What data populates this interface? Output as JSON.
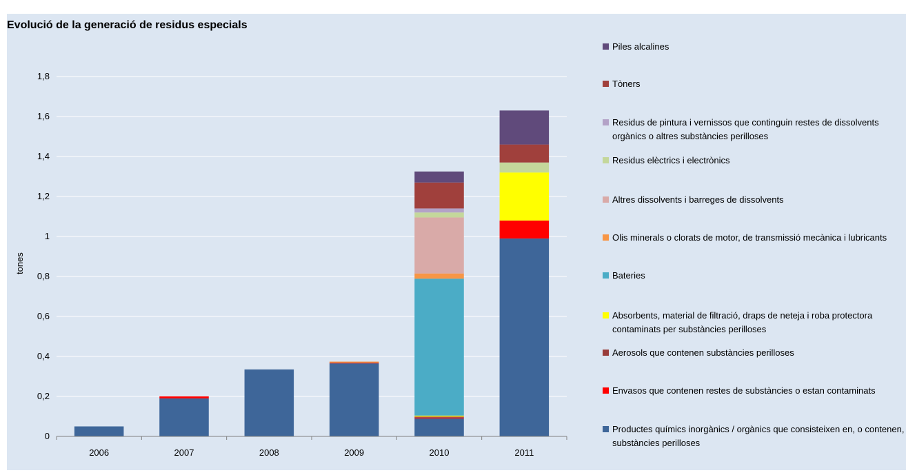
{
  "chart_data": {
    "type": "bar",
    "stacked": true,
    "title": "Evolució de la generació de residus especials",
    "ylabel": "tones",
    "xlabel": "",
    "ylim": [
      0,
      1.8
    ],
    "yticks": [
      "0",
      "0,2",
      "0,4",
      "0,6",
      "0,8",
      "1",
      "1,2",
      "1,4",
      "1,6",
      "1,8"
    ],
    "ytick_values": [
      0,
      0.2,
      0.4,
      0.6,
      0.8,
      1.0,
      1.2,
      1.4,
      1.6,
      1.8
    ],
    "grid": true,
    "legend_position": "right",
    "categories": [
      "2006",
      "2007",
      "2008",
      "2009",
      "2010",
      "2011"
    ],
    "series": [
      {
        "name": "Productes químics inorgànics / orgànics que consisteixen en, o contenen, substàncies perilloses",
        "color": "#3e6699",
        "values": [
          0.05,
          0.19,
          0.335,
          0.365,
          0.09,
          0.99
        ]
      },
      {
        "name": "Envasos que contenen restes de substàncies o estan contaminats",
        "color": "#ff0000",
        "values": [
          0,
          0.01,
          0,
          0.002,
          0.004,
          0.09
        ]
      },
      {
        "name": "Aerosols que contenen substàncies perilloses",
        "color": "#993c3a",
        "values": [
          0,
          0,
          0,
          0.002,
          0.005,
          0
        ]
      },
      {
        "name": "Absorbents, material de filtració, draps de neteja i roba protectora contaminats per substàncies perilloses",
        "color": "#ffff00",
        "values": [
          0,
          0,
          0,
          0,
          0.005,
          0.24
        ]
      },
      {
        "name": "Bateries",
        "color": "#4bacc6",
        "values": [
          0,
          0,
          0,
          0,
          0.685,
          0
        ]
      },
      {
        "name": "Olis minerals o clorats de motor, de transmissió mecànica i lubricants",
        "color": "#f79646",
        "values": [
          0,
          0,
          0,
          0.005,
          0.026,
          0
        ]
      },
      {
        "name": "Altres dissolvents i barreges de dissolvents",
        "color": "#d9aaa8",
        "values": [
          0,
          0,
          0,
          0,
          0.28,
          0
        ]
      },
      {
        "name": "Residus elèctrics i electrònics",
        "color": "#c4d79b",
        "values": [
          0,
          0,
          0,
          0,
          0.025,
          0.05
        ]
      },
      {
        "name": "Residus de pintura i vernissos que continguin restes de dissolvents orgànics o altres substàncies perilloses",
        "color": "#b3a2c7",
        "values": [
          0,
          0,
          0,
          0,
          0.02,
          0
        ]
      },
      {
        "name": "Tòners",
        "color": "#a0403c",
        "values": [
          0,
          0,
          0,
          0,
          0.13,
          0.09
        ]
      },
      {
        "name": "Piles alcalines",
        "color": "#604a7b",
        "values": [
          0,
          0,
          0,
          0,
          0.055,
          0.17
        ]
      }
    ]
  }
}
